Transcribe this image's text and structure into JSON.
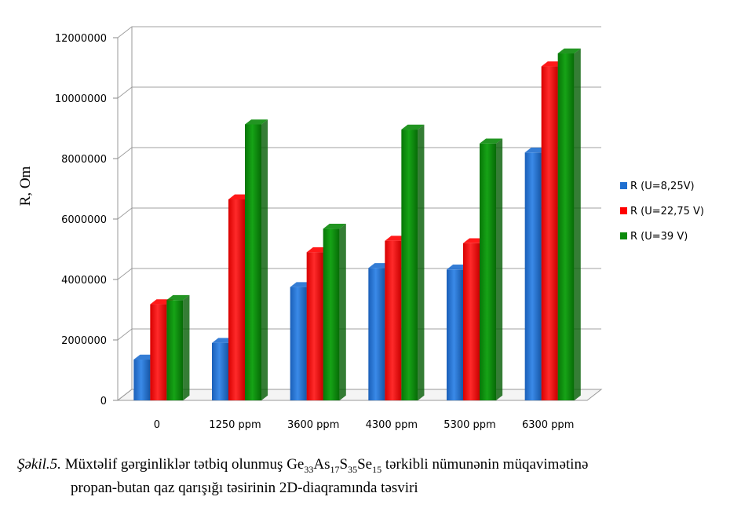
{
  "chart_data": {
    "type": "bar",
    "title": "",
    "xlabel": "",
    "ylabel": "R, Om",
    "ylim": [
      0,
      12000000
    ],
    "yticks": [
      "0",
      "2000000",
      "4000000",
      "6000000",
      "8000000",
      "10000000",
      "12000000"
    ],
    "categories": [
      "0",
      "1250 ppm",
      "3600 ppm",
      "4300 ppm",
      "5300 ppm",
      "6300 ppm"
    ],
    "grid": true,
    "legend_position": "right",
    "style": "3d",
    "series": [
      {
        "name": "R (U=8,25V)",
        "color": "#1f6fd0",
        "values": [
          1350000,
          1900000,
          3750000,
          4380000,
          4330000,
          8200000
        ]
      },
      {
        "name": "R (U=22,75 V)",
        "color": "#ff0000",
        "values": [
          3180000,
          6650000,
          4900000,
          5280000,
          5200000,
          11050000
        ]
      },
      {
        "name": "R (U=39 V)",
        "color": "#0a8a0a",
        "values": [
          3320000,
          9130000,
          5680000,
          8960000,
          8500000,
          11480000
        ]
      }
    ]
  },
  "caption": {
    "label": "Şəkil.5.",
    "line1_pre": "Müxtəlif  gərginliklər tətbiq olunmuş Ge",
    "sub1": "33",
    "t1": "As",
    "sub2": "17",
    "t2": "S",
    "sub3": "35",
    "t3": "Se",
    "sub4": "15",
    "line1_post": "  tərkibli nümunənin müqavimətinə",
    "line2": "propan-butan qaz  qarışığı təsirinin 2D-diaqramında təsviri"
  }
}
